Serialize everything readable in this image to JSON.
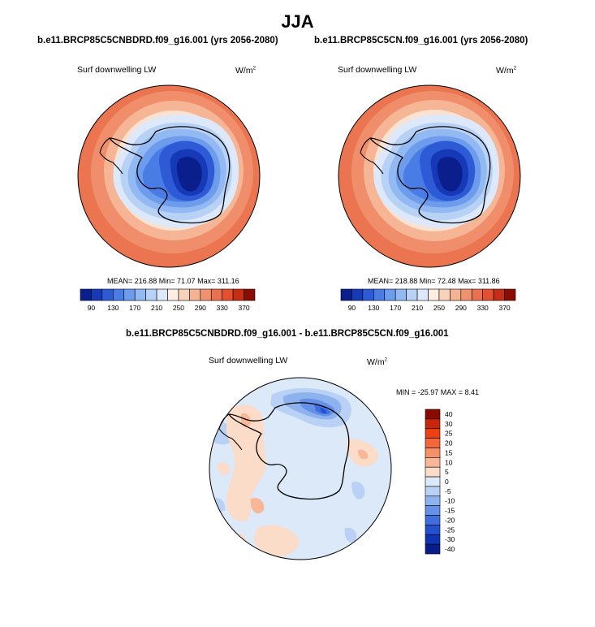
{
  "suptitle": "JJA",
  "panels": [
    {
      "title": "b.e11.BRCP85C5CNBDRD.f09_g16.001 (yrs 2056-2080)",
      "left_label": "Surf downwelling LW",
      "units": "W/m",
      "units_sup": "2",
      "stats": "MEAN= 216.88  Min=  71.07  Max= 311.16"
    },
    {
      "title": "b.e11.BRCP85C5CN.f09_g16.001 (yrs 2056-2080)",
      "left_label": "Surf downwelling LW",
      "units": "W/m",
      "units_sup": "2",
      "stats": "MEAN= 218.88  Min=  72.48  Max= 311.86"
    },
    {
      "title": "b.e11.BRCP85C5CNBDRD.f09_g16.001 - b.e11.BRCP85C5CN.f09_g16.001",
      "left_label": "Surf downwelling LW",
      "units": "W/m",
      "units_sup": "2",
      "stats": "MIN = -25.97 MAX =   8.41"
    }
  ],
  "field_colorbar": {
    "colors": [
      "#0a1e8c",
      "#1639b8",
      "#2e5ad6",
      "#4a7ce6",
      "#6d9ced",
      "#92b9f2",
      "#b8d2f6",
      "#dde9fa",
      "#fdeee3",
      "#f9d2bb",
      "#f4b393",
      "#ef9270",
      "#e9714f",
      "#e2502f",
      "#c52d15",
      "#8a0d04"
    ],
    "tick_labels": [
      "90",
      "130",
      "170",
      "210",
      "250",
      "290",
      "330",
      "370"
    ]
  },
  "diff_colorbar": {
    "colors": [
      "#8b0a00",
      "#c9260c",
      "#ec3f12",
      "#f4673a",
      "#f69068",
      "#f8b898",
      "#fbdcc8",
      "#dbe9f9",
      "#b9d1f5",
      "#8eb2ee",
      "#6592e8",
      "#3f6fdf",
      "#2250cf",
      "#0f33b5",
      "#0a1c8a"
    ],
    "tick_labels": [
      "40",
      "30",
      "25",
      "20",
      "15",
      "10",
      "5",
      "0",
      "-5",
      "-10",
      "-15",
      "-20",
      "-25",
      "-30",
      "-40"
    ]
  },
  "colors": {
    "land_outline": "#000000",
    "ocean_diff_base": "#dbe9f9"
  }
}
